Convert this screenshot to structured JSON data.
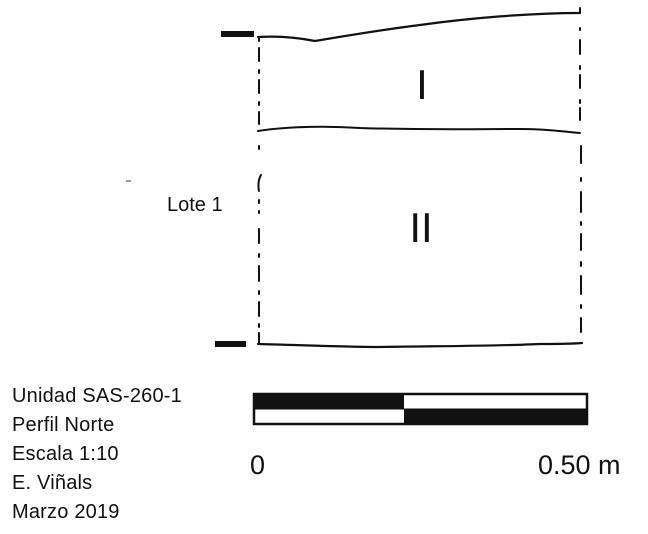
{
  "drawing": {
    "layers": [
      {
        "label": "I"
      },
      {
        "label": "II"
      }
    ],
    "lot_label": "Lote 1"
  },
  "caption": {
    "lines": [
      "Unidad SAS-260-1",
      "Perfil Norte",
      "Escala 1:10",
      "E. Viñals",
      "Marzo 2019"
    ]
  },
  "scale_bar": {
    "start_label": "0",
    "end_label": "0.50 m",
    "length_m": 0.5
  },
  "colors": {
    "ink": "#111111",
    "paper": "#ffffff"
  }
}
